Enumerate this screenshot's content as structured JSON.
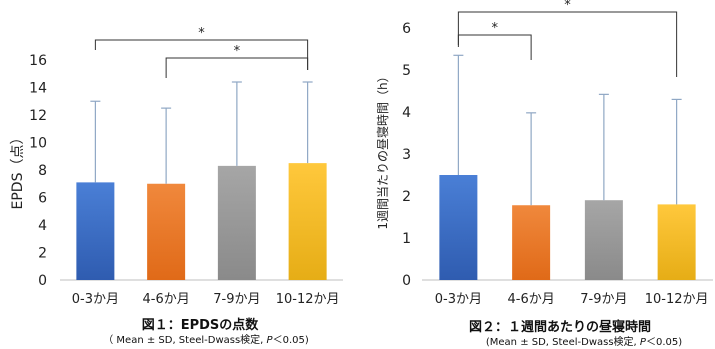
{
  "chart_data": [
    {
      "type": "bar",
      "categories": [
        "0-3か月",
        "4-6か月",
        "7-9か月",
        "10-12か月"
      ],
      "values": [
        7.1,
        7.0,
        8.3,
        8.5
      ],
      "error_sd": [
        5.9,
        5.5,
        6.1,
        5.9
      ],
      "ylabel": "EPDS（点）",
      "ylim": [
        0,
        16
      ],
      "yticks": [
        0,
        2,
        4,
        6,
        8,
        10,
        12,
        14,
        16
      ],
      "significance": [
        {
          "from": 0,
          "to": 3,
          "label": "*"
        },
        {
          "from": 1,
          "to": 3,
          "label": "*"
        }
      ],
      "caption": "図１：EPDSの点数",
      "note_prefix": "（ Mean ± SD, Steel-Dwass検定, ",
      "note_p": "P",
      "note_suffix": "＜0.05)",
      "colors": {
        "top": [
          "#4a7fd6",
          "#f0883c",
          "#a6a6a6",
          "#ffc83c"
        ],
        "bottom": [
          "#2f5cb0",
          "#e06a18",
          "#8a8a8a",
          "#e6ad16"
        ],
        "error": "#8fa7c4"
      }
    },
    {
      "type": "bar",
      "categories": [
        "0-3か月",
        "4-6か月",
        "7-9か月",
        "10-12か月"
      ],
      "values": [
        2.5,
        1.78,
        1.9,
        1.8
      ],
      "error_sd": [
        2.85,
        2.2,
        2.52,
        2.5
      ],
      "ylabel": "1週間当たりの昼寝時間（h）",
      "ylim": [
        0,
        6
      ],
      "yticks": [
        0,
        1,
        2,
        3,
        4,
        5,
        6
      ],
      "significance": [
        {
          "from": 0,
          "to": 3,
          "label": "*"
        },
        {
          "from": 0,
          "to": 1,
          "label": "*"
        }
      ],
      "caption": "図２：１週間あたりの昼寝時間",
      "note_prefix": "(Mean ± SD, Steel-Dwass検定, ",
      "note_p": "P",
      "note_suffix": "＜0.05)",
      "colors": {
        "top": [
          "#4a7fd6",
          "#f0883c",
          "#a6a6a6",
          "#ffc83c"
        ],
        "bottom": [
          "#2f5cb0",
          "#e06a18",
          "#8a8a8a",
          "#e6ad16"
        ],
        "error": "#8fa7c4"
      }
    }
  ]
}
